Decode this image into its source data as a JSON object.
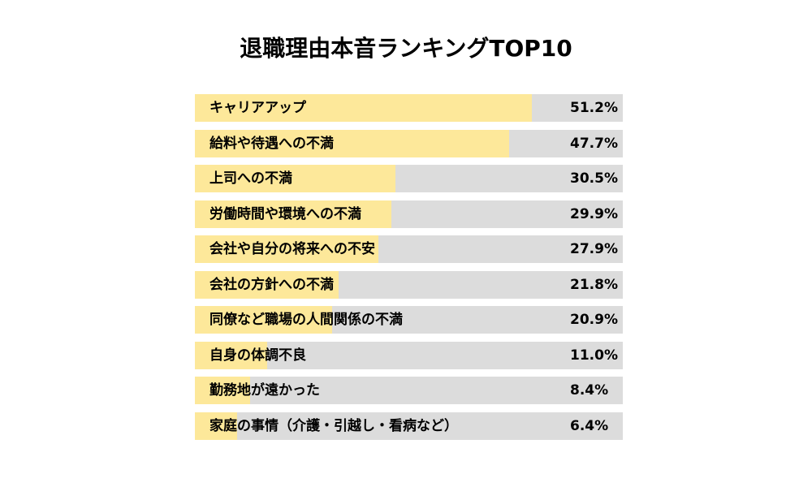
{
  "chart_data": {
    "type": "bar",
    "orientation": "horizontal",
    "title": "退職理由本音ランキングTOP10",
    "categories": [
      "キャリアアップ",
      "給料や待遇への不満",
      "上司への不満",
      "労働時間や環境への不満",
      "会社や自分の将来への不安",
      "会社の方針への不満",
      "同僚など職場の人間関係の不満",
      "自身の体調不良",
      "勤務地が遠かった",
      "家庭の事情（介護・引越し・看病など）"
    ],
    "values": [
      51.2,
      47.7,
      30.5,
      29.9,
      27.9,
      21.8,
      20.9,
      11.0,
      8.4,
      6.4
    ],
    "value_labels": [
      "51.2%",
      "47.7%",
      "30.5%",
      "29.9%",
      "27.9%",
      "21.8%",
      "20.9%",
      "11.0%",
      "8.4%",
      "6.4%"
    ],
    "xlim": [
      0,
      65
    ],
    "grid": false,
    "legend": "none",
    "colors": {
      "bar": "#fde89a",
      "track": "#dcdcdc"
    }
  }
}
